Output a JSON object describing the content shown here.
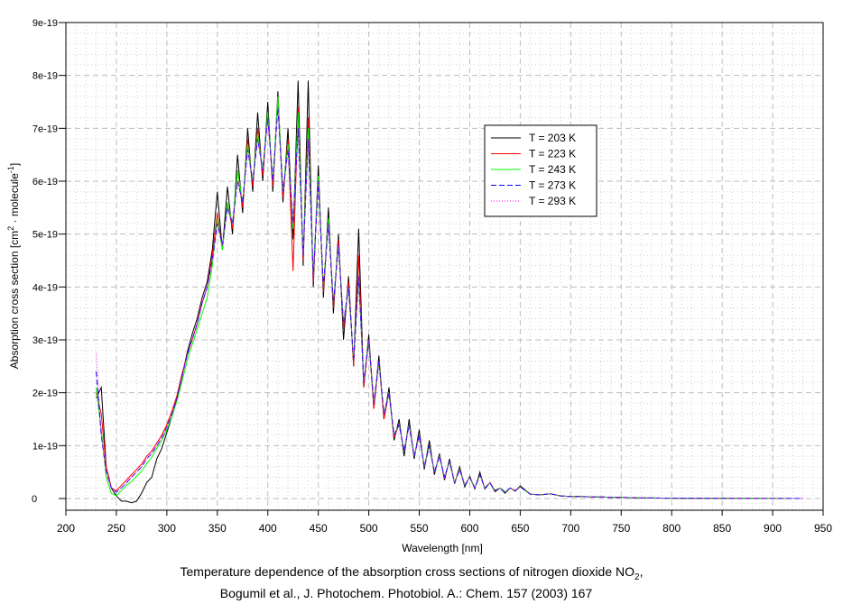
{
  "chart_data": {
    "type": "line",
    "xlabel": "Wavelength [nm]",
    "ylabel": {
      "main": "Absorption cross section [cm",
      "sup1": "2",
      "mid": " · molecule",
      "sup2": "-1",
      "end": "]"
    },
    "caption": {
      "line1_main": "Temperature dependence of the absorption cross sections of nitrogen dioxide NO",
      "line1_sub": "2",
      "line1_end": ",",
      "line2": "Bogumil et al., J. Photochem. Photobiol. A.: Chem. 157 (2003) 167"
    },
    "xlim": [
      200,
      950
    ],
    "ylim": [
      -2.2e-21,
      9e-19
    ],
    "y_unit_scale": 1e-19,
    "xticks": [
      200,
      250,
      300,
      350,
      400,
      450,
      500,
      550,
      600,
      650,
      700,
      750,
      800,
      850,
      900,
      950
    ],
    "xtick_labels": [
      "200",
      "250",
      "300",
      "350",
      "400",
      "450",
      "500",
      "550",
      "600",
      "650",
      "700",
      "750",
      "800",
      "850",
      "900",
      "950"
    ],
    "yticks": [
      0,
      1,
      2,
      3,
      4,
      5,
      6,
      7,
      8,
      9
    ],
    "ytick_labels": [
      "0",
      "1e-19",
      "2e-19",
      "3e-19",
      "4e-19",
      "5e-19",
      "6e-19",
      "7e-19",
      "8e-19",
      "9e-19"
    ],
    "grid": true,
    "legend_placement": "upper-right-center",
    "x": [
      230,
      235,
      240,
      245,
      250,
      255,
      260,
      265,
      270,
      275,
      280,
      285,
      290,
      295,
      300,
      305,
      310,
      315,
      320,
      325,
      330,
      335,
      340,
      345,
      350,
      355,
      360,
      365,
      370,
      375,
      380,
      385,
      390,
      395,
      400,
      405,
      410,
      415,
      420,
      425,
      430,
      435,
      440,
      445,
      450,
      455,
      460,
      465,
      470,
      475,
      480,
      485,
      490,
      495,
      500,
      505,
      510,
      515,
      520,
      525,
      530,
      535,
      540,
      545,
      550,
      555,
      560,
      565,
      570,
      575,
      580,
      585,
      590,
      595,
      600,
      605,
      610,
      615,
      620,
      625,
      630,
      635,
      640,
      645,
      650,
      660,
      670,
      680,
      690,
      700,
      710,
      720,
      730,
      740,
      750,
      760,
      770,
      780,
      790,
      800,
      810,
      820,
      830,
      840,
      850,
      860,
      870,
      880,
      890,
      900,
      910,
      920,
      930
    ],
    "series": [
      {
        "name": "T = 203 K",
        "color": "#000000",
        "dash": "solid",
        "values": [
          1.9,
          2.1,
          0.6,
          0.2,
          0.05,
          -0.05,
          -0.05,
          -0.08,
          -0.05,
          0.1,
          0.3,
          0.4,
          0.75,
          0.95,
          1.25,
          1.55,
          1.9,
          2.3,
          2.75,
          3.1,
          3.4,
          3.8,
          4.1,
          4.7,
          5.8,
          4.7,
          5.9,
          5.0,
          6.5,
          5.4,
          7.0,
          5.8,
          7.3,
          6.0,
          7.5,
          5.8,
          7.7,
          5.6,
          7.0,
          4.9,
          7.9,
          4.4,
          7.9,
          4.0,
          6.3,
          3.8,
          5.5,
          3.5,
          5.0,
          3.0,
          4.2,
          2.5,
          5.1,
          2.1,
          3.1,
          1.7,
          2.7,
          1.5,
          2.1,
          1.1,
          1.5,
          0.8,
          1.5,
          0.75,
          1.3,
          0.55,
          1.1,
          0.45,
          0.85,
          0.35,
          0.75,
          0.28,
          0.6,
          0.22,
          0.42,
          0.18,
          0.5,
          0.18,
          0.3,
          0.13,
          0.2,
          0.1,
          0.2,
          0.14,
          0.24,
          0.08,
          0.07,
          0.09,
          0.05,
          0.04,
          0.04,
          0.03,
          0.03,
          0.02,
          0.02,
          0.015,
          0.01,
          0.01,
          0.008,
          0.006,
          0.005,
          0.004,
          0.004,
          0.003,
          0.003,
          0.002,
          0.002,
          0.002,
          0.001,
          null,
          null,
          null,
          null
        ]
      },
      {
        "name": "T = 223 K",
        "color": "#ff0000",
        "dash": "solid",
        "values": [
          2.0,
          1.6,
          0.6,
          0.2,
          0.15,
          0.25,
          0.35,
          0.45,
          0.55,
          0.65,
          0.8,
          0.9,
          1.05,
          1.2,
          1.4,
          1.65,
          1.95,
          2.35,
          2.7,
          3.0,
          3.3,
          3.7,
          4.0,
          4.6,
          5.4,
          4.7,
          5.6,
          5.1,
          6.2,
          5.5,
          6.8,
          5.9,
          7.0,
          6.1,
          7.3,
          5.9,
          7.6,
          5.7,
          6.8,
          4.3,
          7.4,
          4.5,
          7.2,
          4.1,
          6.1,
          3.9,
          5.3,
          3.6,
          4.9,
          3.2,
          4.1,
          2.5,
          4.6,
          2.1,
          3.0,
          1.7,
          2.6,
          1.5,
          2.0,
          1.15,
          1.4,
          0.9,
          1.4,
          0.8,
          1.2,
          0.6,
          1.0,
          0.5,
          0.8,
          0.4,
          0.7,
          0.3,
          0.55,
          0.25,
          0.4,
          0.2,
          0.45,
          0.2,
          0.3,
          0.15,
          0.2,
          0.12,
          0.2,
          0.15,
          0.22,
          0.08,
          0.07,
          0.09,
          0.05,
          0.04,
          0.04,
          0.03,
          0.03,
          0.02,
          0.02,
          0.015,
          0.01,
          0.01,
          0.008,
          0.006,
          0.005,
          0.004,
          0.004,
          0.003,
          0.003,
          0.002,
          0.002,
          0.002,
          0.001,
          0.001,
          0.001,
          null,
          null
        ]
      },
      {
        "name": "T = 243 K",
        "color": "#00ff00",
        "dash": "solid",
        "values": [
          2.1,
          1.3,
          0.4,
          0.1,
          0.05,
          0.15,
          0.25,
          0.32,
          0.42,
          0.52,
          0.66,
          0.78,
          0.95,
          1.1,
          1.3,
          1.55,
          1.85,
          2.2,
          2.6,
          2.9,
          3.2,
          3.5,
          3.8,
          4.4,
          5.3,
          4.7,
          5.6,
          5.2,
          6.2,
          5.6,
          6.7,
          6.0,
          6.9,
          6.2,
          7.3,
          6.0,
          7.6,
          5.8,
          6.7,
          5.1,
          7.3,
          4.6,
          7.0,
          4.2,
          6.1,
          4.0,
          5.3,
          3.7,
          4.8,
          3.3,
          4.0,
          2.6,
          4.2,
          2.2,
          3.0,
          1.8,
          2.6,
          1.6,
          2.0,
          1.2,
          1.4,
          0.9,
          1.4,
          0.8,
          1.2,
          0.6,
          1.0,
          0.5,
          0.8,
          0.4,
          0.7,
          0.3,
          0.55,
          0.25,
          0.4,
          0.2,
          0.45,
          0.2,
          0.3,
          0.15,
          0.2,
          0.12,
          0.2,
          0.15,
          0.22,
          0.08,
          0.07,
          0.09,
          0.05,
          0.04,
          0.04,
          0.03,
          0.03,
          0.02,
          0.02,
          0.015,
          0.01,
          0.01,
          0.008,
          0.006,
          0.005,
          0.004,
          0.004,
          0.003,
          0.003,
          0.002,
          0.002,
          0.002,
          0.001,
          0.001,
          0.001,
          0.001,
          null
        ]
      },
      {
        "name": "T = 273 K",
        "color": "#0000ff",
        "dash": "dashed",
        "values": [
          2.4,
          1.2,
          0.5,
          0.2,
          0.12,
          0.2,
          0.3,
          0.4,
          0.5,
          0.6,
          0.75,
          0.85,
          1.0,
          1.15,
          1.35,
          1.6,
          1.9,
          2.3,
          2.7,
          3.0,
          3.3,
          3.7,
          4.0,
          4.5,
          5.2,
          4.8,
          5.5,
          5.2,
          6.0,
          5.6,
          6.6,
          6.0,
          6.8,
          6.2,
          7.2,
          6.0,
          7.4,
          5.8,
          6.6,
          5.2,
          7.0,
          4.6,
          6.8,
          4.2,
          6.0,
          4.0,
          5.2,
          3.7,
          4.8,
          3.3,
          4.0,
          2.6,
          4.2,
          2.2,
          3.0,
          1.8,
          2.6,
          1.6,
          2.0,
          1.2,
          1.4,
          0.9,
          1.4,
          0.8,
          1.2,
          0.6,
          1.0,
          0.5,
          0.8,
          0.4,
          0.7,
          0.3,
          0.55,
          0.25,
          0.4,
          0.2,
          0.45,
          0.2,
          0.3,
          0.15,
          0.2,
          0.12,
          0.2,
          0.15,
          0.22,
          0.08,
          0.07,
          0.09,
          0.05,
          0.04,
          0.04,
          0.03,
          0.03,
          0.02,
          0.02,
          0.015,
          0.01,
          0.01,
          0.008,
          0.006,
          0.005,
          0.004,
          0.004,
          0.003,
          0.003,
          0.002,
          0.002,
          0.002,
          0.001,
          0.001,
          0.001,
          0.001,
          0.001
        ]
      },
      {
        "name": "T = 293 K",
        "color": "#ff00ff",
        "dash": "dotted",
        "values": [
          2.75,
          1.2,
          0.5,
          0.2,
          0.12,
          0.2,
          0.3,
          0.4,
          0.5,
          0.6,
          0.75,
          0.85,
          1.0,
          1.15,
          1.35,
          1.6,
          1.9,
          2.3,
          2.7,
          3.0,
          3.3,
          3.7,
          4.0,
          4.5,
          5.2,
          4.8,
          5.5,
          5.2,
          6.0,
          5.6,
          6.6,
          6.0,
          6.8,
          6.2,
          7.2,
          6.0,
          7.4,
          5.8,
          6.6,
          5.2,
          7.0,
          4.6,
          6.8,
          4.2,
          6.0,
          4.0,
          5.2,
          3.7,
          4.8,
          3.3,
          4.0,
          2.6,
          4.2,
          2.2,
          3.0,
          1.8,
          2.6,
          1.6,
          2.0,
          1.2,
          1.4,
          0.9,
          1.4,
          0.8,
          1.2,
          0.6,
          1.0,
          0.5,
          0.8,
          0.4,
          0.7,
          0.3,
          0.55,
          0.25,
          0.4,
          0.2,
          0.45,
          0.2,
          0.3,
          0.15,
          0.2,
          0.12,
          0.2,
          0.15,
          0.22,
          0.08,
          0.07,
          0.09,
          0.05,
          0.04,
          0.04,
          0.03,
          0.03,
          0.02,
          0.02,
          0.015,
          0.01,
          0.01,
          0.008,
          0.006,
          0.005,
          0.004,
          0.004,
          0.003,
          0.003,
          0.002,
          0.002,
          0.002,
          0.001,
          0.001,
          0.001,
          0.001,
          0.001
        ]
      }
    ]
  }
}
